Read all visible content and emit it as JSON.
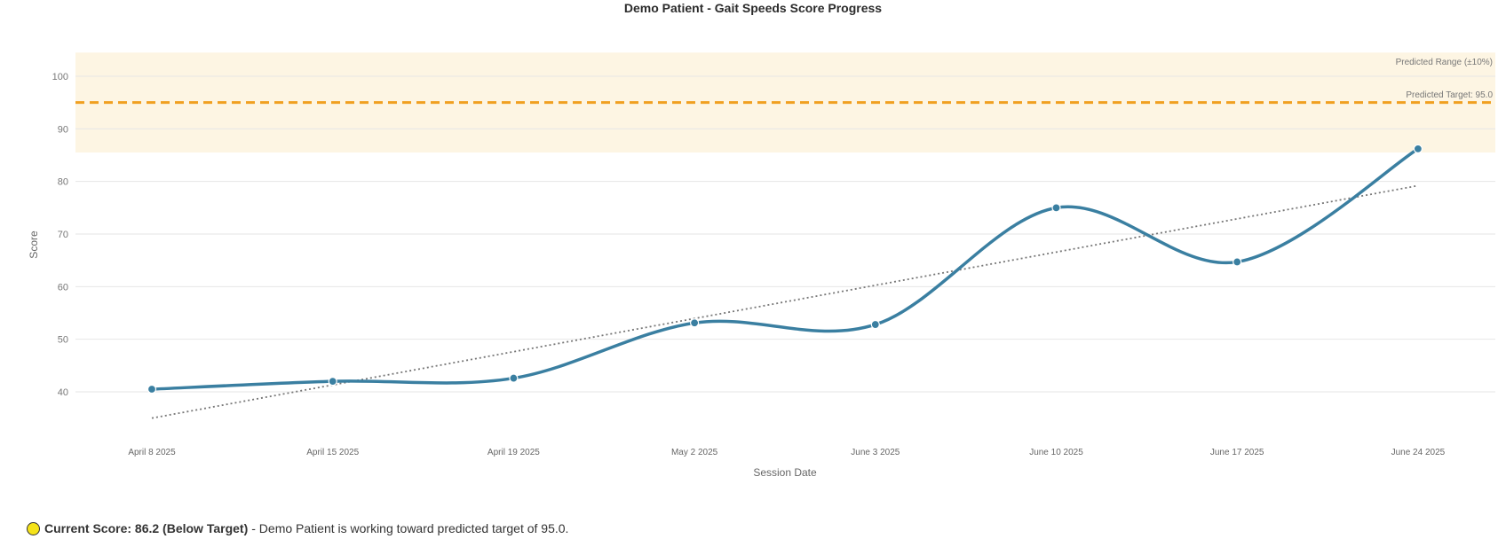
{
  "chart_data": {
    "type": "line",
    "title": "Demo Patient - Gait Speeds Score Progress",
    "xlabel": "Session Date",
    "ylabel": "Score",
    "categories": [
      "April 8 2025",
      "April 15 2025",
      "April 19 2025",
      "May 2 2025",
      "June 3 2025",
      "June 10 2025",
      "June 17 2025",
      "June 24 2025"
    ],
    "series": [
      {
        "values": [
          40.5,
          42.0,
          42.6,
          53.1,
          52.8,
          75.0,
          64.7,
          86.2
        ],
        "color": "#3a7fa1"
      }
    ],
    "trendline": {
      "start": 35.0,
      "end": 79.2,
      "color": "#777777",
      "style": "dotted"
    },
    "predicted_range": {
      "label": "Predicted Range (±10%)",
      "low": 85.5,
      "high": 104.5,
      "color": "#fdf5e3"
    },
    "target": {
      "label": "Predicted Target: 95.0",
      "value": 95.0,
      "color": "#f0a020"
    },
    "ylim": [
      32,
      105
    ],
    "yticks": [
      40,
      50,
      60,
      70,
      80,
      90,
      100
    ],
    "grid": true
  },
  "status": {
    "strong": "Current Score: 86.2 (Below Target)",
    "text": " - Demo Patient is working toward predicted target of 95.0.",
    "indicator_color": "#f5e31a"
  }
}
